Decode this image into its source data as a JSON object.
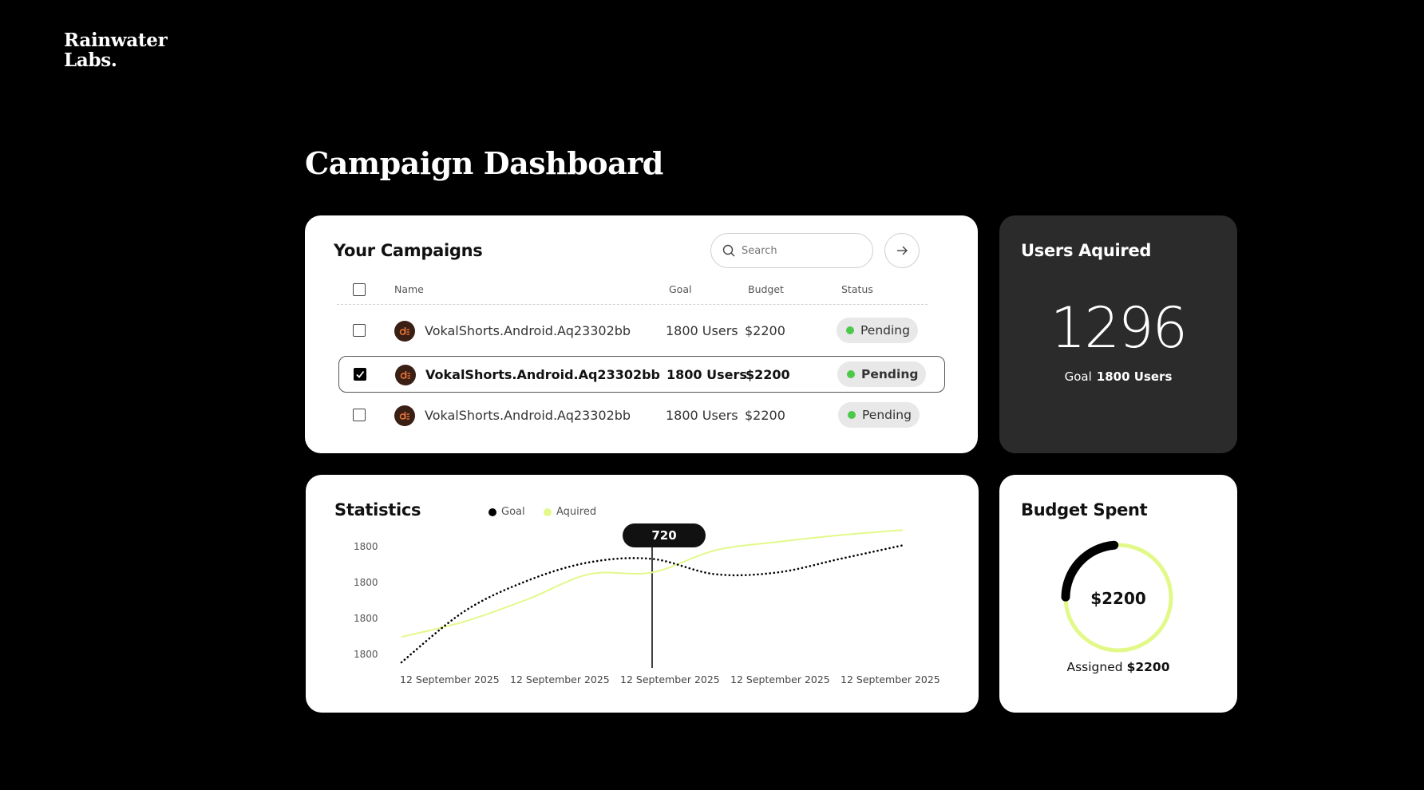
{
  "brand": {
    "line1": "Rainwater",
    "line2": "Labs."
  },
  "page_title": "Campaign Dashboard",
  "campaigns": {
    "title": "Your Campaigns",
    "search_placeholder": "Search",
    "columns": {
      "name": "Name",
      "goal": "Goal",
      "budget": "Budget",
      "status": "Status"
    },
    "rows": [
      {
        "name": "VokalShorts.Android.Aq23302bb",
        "goal": "1800 Users",
        "budget": "$2200",
        "status": "Pending",
        "checked": false
      },
      {
        "name": "VokalShorts.Android.Aq23302bb",
        "goal": "1800 Users",
        "budget": "$2200",
        "status": "Pending",
        "checked": true
      },
      {
        "name": "VokalShorts.Android.Aq23302bb",
        "goal": "1800 Users",
        "budget": "$2200",
        "status": "Pending",
        "checked": false
      }
    ]
  },
  "users": {
    "title": "Users Aquired",
    "value": "1296",
    "goal_label": "Goal",
    "goal_value": "1800 Users"
  },
  "statistics": {
    "title": "Statistics",
    "legend": [
      {
        "label": "Goal",
        "color": "#000000"
      },
      {
        "label": "Aquired",
        "color": "#e2f98a"
      }
    ],
    "tooltip": "720"
  },
  "chart_data": {
    "type": "line",
    "y_tick_labels": [
      "1800",
      "1800",
      "1800",
      "1800"
    ],
    "x_tick_labels": [
      "12 September 2025",
      "12 September 2025",
      "12 September 2025",
      "12 September 2025",
      "12 September 2025"
    ],
    "x": [
      0,
      0.5,
      1,
      1.5,
      2,
      2.5,
      3,
      3.5,
      4
    ],
    "series": [
      {
        "name": "Goal",
        "style": "dotted",
        "color": "#000000",
        "values": [
          0,
          1.5,
          2.4,
          2.95,
          3.05,
          2.6,
          2.65,
          3.05,
          3.45
        ]
      },
      {
        "name": "Aquired",
        "style": "solid",
        "color": "#e2f98a",
        "values": [
          0.75,
          1.2,
          1.85,
          2.6,
          2.65,
          3.3,
          3.55,
          3.75,
          3.9
        ]
      }
    ],
    "ylim": [
      0,
      4
    ],
    "highlight": {
      "x": 2.0,
      "label": "720"
    }
  },
  "budget": {
    "title": "Budget Spent",
    "center_value": "$2200",
    "assigned_label": "Assigned",
    "assigned_value": "$2200",
    "spent_fraction": 0.16,
    "colors": {
      "spent": "#000000",
      "remaining": "#e2f98a"
    }
  }
}
